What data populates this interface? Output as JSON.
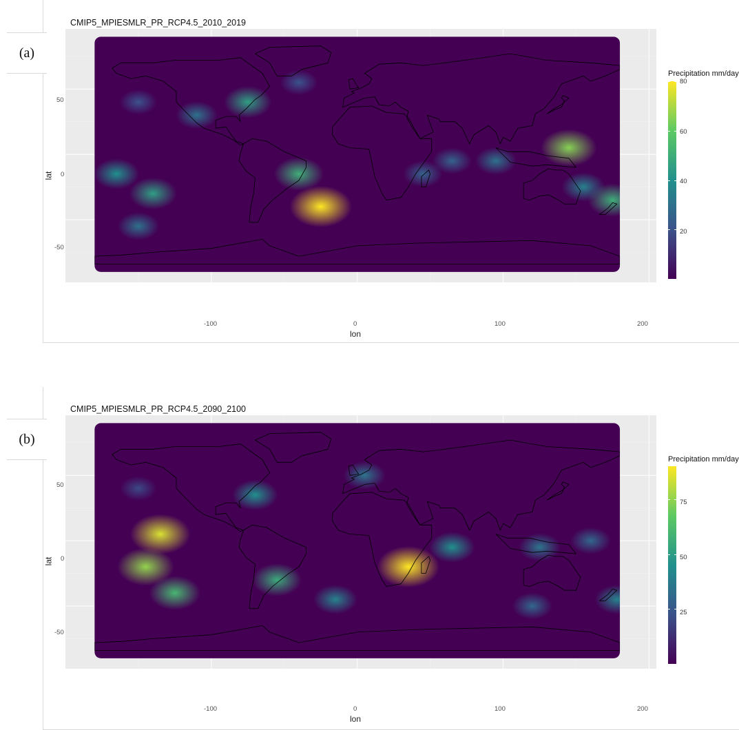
{
  "panels": [
    {
      "label": "(a)",
      "title": "CMIP5_MPIESMLR_PR_RCP4.5_2010_2019",
      "xlabel": "lon",
      "ylabel": "lat",
      "x_ticks": [
        "-100",
        "0",
        "100",
        "200"
      ],
      "y_ticks": [
        "50",
        "0",
        "-50"
      ],
      "legend_title": "Precipitation mm/day",
      "legend_ticks": [
        "80",
        "60",
        "40",
        "20"
      ],
      "legend_max": 80
    },
    {
      "label": "(b)",
      "title": "CMIP5_MPIESMLR_PR_RCP4.5_2090_2100",
      "xlabel": "lon",
      "ylabel": "lat",
      "x_ticks": [
        "-100",
        "0",
        "100",
        "200"
      ],
      "y_ticks": [
        "50",
        "0",
        "-50"
      ],
      "legend_title": "Precipitation mm/day",
      "legend_ticks": [
        "75",
        "50",
        "25"
      ],
      "legend_max": 90
    }
  ],
  "map_extent": {
    "lon": [
      -180,
      180
    ],
    "lat": [
      -90,
      90
    ]
  },
  "axis_limits": {
    "x": [
      -200,
      205
    ],
    "y": [
      -98,
      96
    ]
  },
  "colors": {
    "panel_background": "#ebebeb",
    "map_base": "#440154",
    "viridis": [
      "#440154",
      "#3b528b",
      "#21908d",
      "#5dc963",
      "#fde725"
    ]
  },
  "hotspots": [
    [
      {
        "lon": -150,
        "lat": 40,
        "v": 20
      },
      {
        "lon": -110,
        "lat": 30,
        "v": 30
      },
      {
        "lon": -75,
        "lat": 40,
        "v": 45
      },
      {
        "lon": -40,
        "lat": 55,
        "v": 20
      },
      {
        "lon": -165,
        "lat": -15,
        "v": 40
      },
      {
        "lon": -140,
        "lat": -30,
        "v": 45
      },
      {
        "lon": -150,
        "lat": -55,
        "v": 30
      },
      {
        "lon": -40,
        "lat": -15,
        "v": 50
      },
      {
        "lon": -25,
        "lat": -40,
        "v": 80
      },
      {
        "lon": 45,
        "lat": -15,
        "v": 25
      },
      {
        "lon": 65,
        "lat": -5,
        "v": 25
      },
      {
        "lon": 145,
        "lat": 5,
        "v": 65
      },
      {
        "lon": 175,
        "lat": -35,
        "v": 50
      },
      {
        "lon": 155,
        "lat": -25,
        "v": 35
      },
      {
        "lon": 95,
        "lat": -5,
        "v": 30
      }
    ],
    [
      {
        "lon": -150,
        "lat": 40,
        "v": 20
      },
      {
        "lon": -70,
        "lat": 35,
        "v": 45
      },
      {
        "lon": 5,
        "lat": 50,
        "v": 35
      },
      {
        "lon": -135,
        "lat": 5,
        "v": 85
      },
      {
        "lon": -145,
        "lat": -20,
        "v": 75
      },
      {
        "lon": -125,
        "lat": -40,
        "v": 60
      },
      {
        "lon": -55,
        "lat": -30,
        "v": 55
      },
      {
        "lon": -15,
        "lat": -45,
        "v": 40
      },
      {
        "lon": 35,
        "lat": -20,
        "v": 90
      },
      {
        "lon": 65,
        "lat": -5,
        "v": 45
      },
      {
        "lon": 125,
        "lat": -5,
        "v": 35
      },
      {
        "lon": 160,
        "lat": 0,
        "v": 30
      },
      {
        "lon": 178,
        "lat": -45,
        "v": 40
      },
      {
        "lon": 120,
        "lat": -50,
        "v": 30
      }
    ]
  ]
}
